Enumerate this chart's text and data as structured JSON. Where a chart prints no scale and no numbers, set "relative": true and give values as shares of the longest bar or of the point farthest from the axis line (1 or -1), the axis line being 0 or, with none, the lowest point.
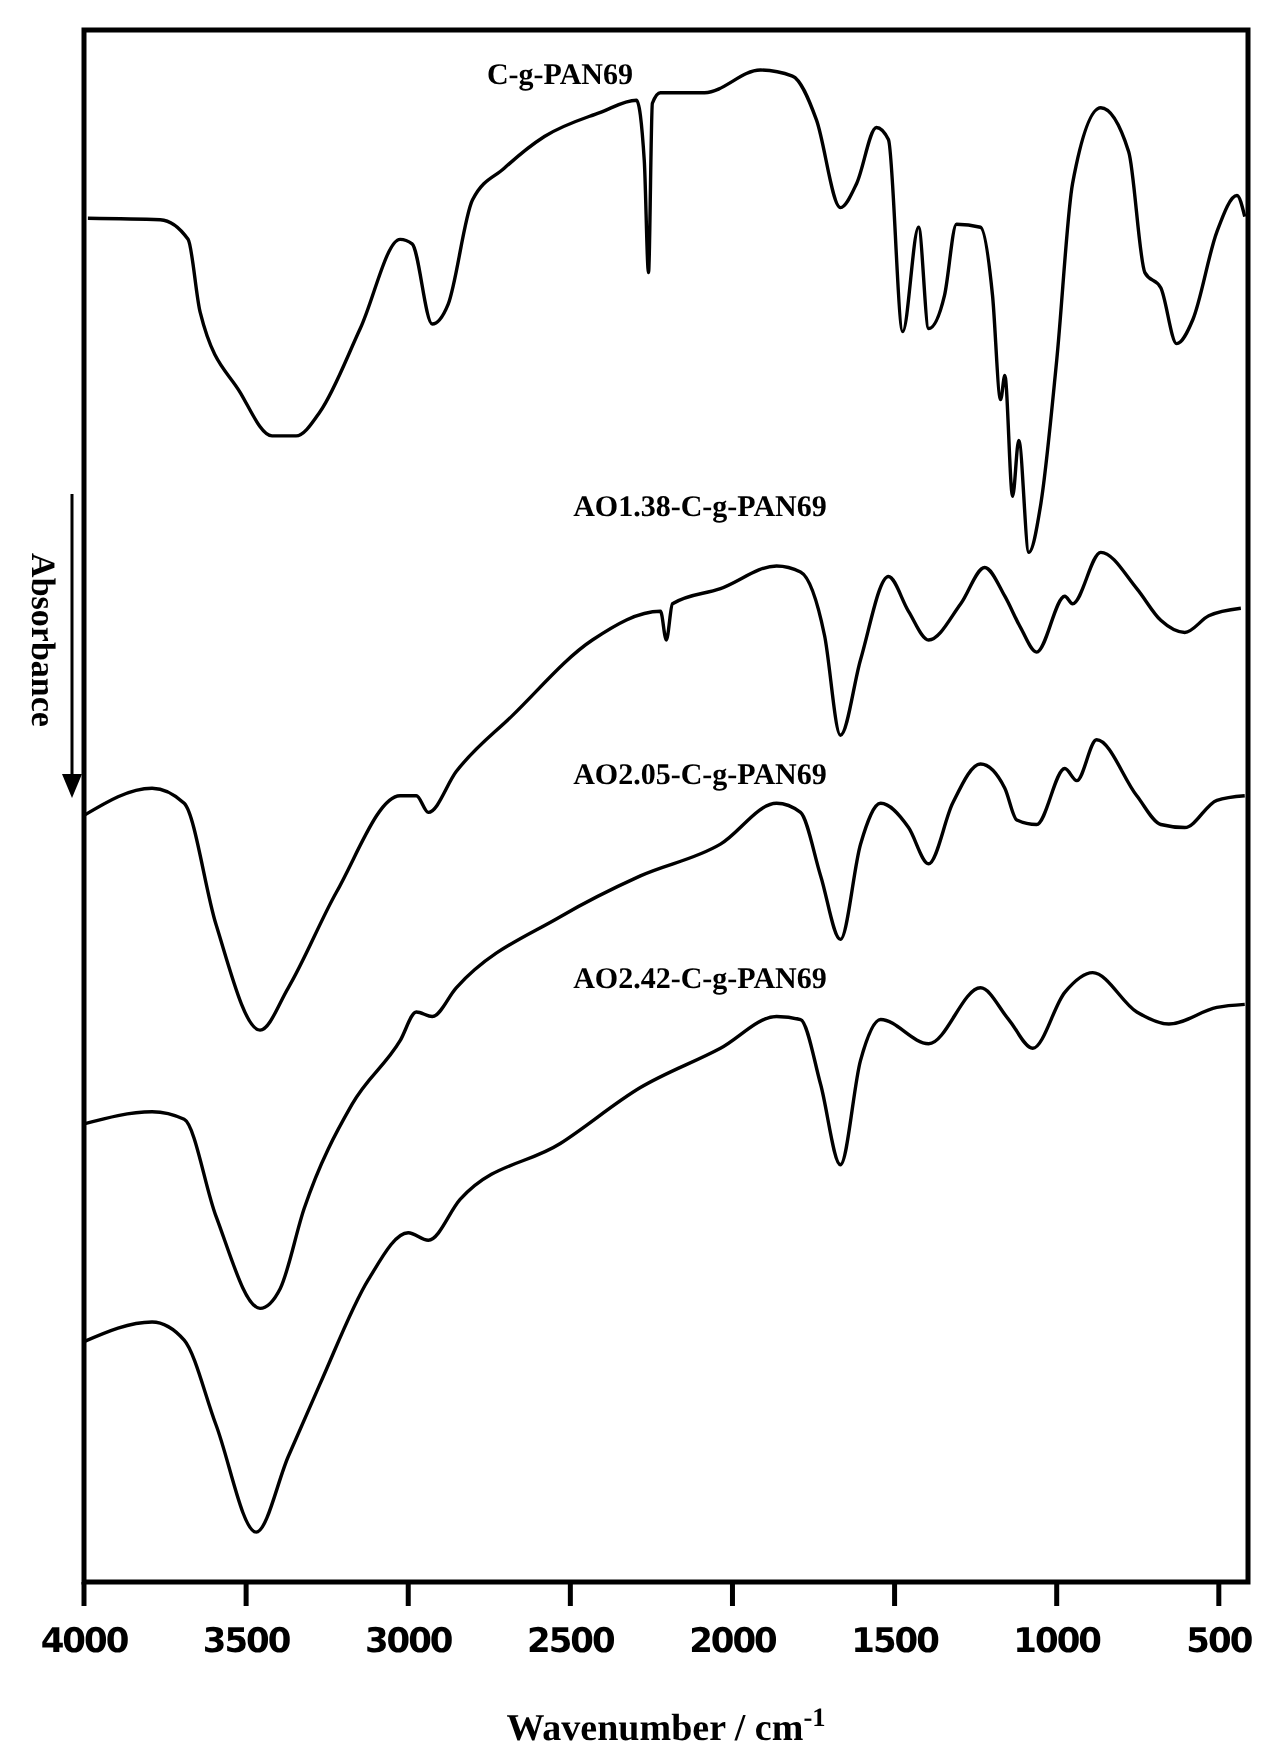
{
  "chart_data": {
    "type": "line",
    "relative": true,
    "xlabel": "Wavenumber / cm$^{-1}$",
    "ylabel": "Absorbance",
    "xlim": [
      4000,
      410
    ],
    "xticks": [
      4000,
      3500,
      3000,
      2500,
      2000,
      1500,
      1000,
      500
    ],
    "grid": false,
    "legend": false,
    "marker": "none",
    "line_style": "solid",
    "tick_labels": "x",
    "series": [
      {
        "name": "C-g-PAN69",
        "color": "#000000",
        "x": [
          3988,
          3765,
          3679,
          3642,
          3519,
          3420,
          3346,
          3272,
          3148,
          3025,
          2988,
          2926,
          2877,
          2802,
          2704,
          2580,
          2407,
          2296,
          2272,
          2259,
          2247,
          2222,
          2086,
          1914,
          1815,
          1741,
          1667,
          1617,
          1556,
          1519,
          1475,
          1426,
          1395,
          1346,
          1309,
          1235,
          1198,
          1173,
          1160,
          1136,
          1117,
          1086,
          1049,
          1000,
          951,
          864,
          778,
          728,
          679,
          630,
          580,
          506,
          444,
          420
        ],
        "values": [
          0.902,
          0.901,
          0.888,
          0.84,
          0.787,
          0.758,
          0.758,
          0.774,
          0.829,
          0.888,
          0.885,
          0.832,
          0.845,
          0.914,
          0.935,
          0.956,
          0.972,
          0.98,
          0.94,
          0.866,
          0.978,
          0.985,
          0.985,
          1.0,
          0.996,
          0.967,
          0.909,
          0.925,
          0.962,
          0.954,
          0.827,
          0.896,
          0.829,
          0.851,
          0.898,
          0.896,
          0.851,
          0.782,
          0.798,
          0.718,
          0.755,
          0.681,
          0.713,
          0.808,
          0.925,
          0.975,
          0.946,
          0.866,
          0.856,
          0.819,
          0.835,
          0.893,
          0.917,
          0.903
        ]
      },
      {
        "name": "AO1.38-C-g-PAN69",
        "color": "#000000",
        "x": [
          4000,
          3790,
          3691,
          3593,
          3457,
          3370,
          3222,
          3025,
          2975,
          2938,
          2852,
          2679,
          2432,
          2222,
          2204,
          2185,
          2037,
          1864,
          1790,
          1716,
          1667,
          1605,
          1519,
          1457,
          1395,
          1296,
          1222,
          1160,
          1111,
          1062,
          975,
          951,
          864,
          753,
          679,
          605,
          531,
          432
        ],
        "values": [
          0.507,
          0.525,
          0.515,
          0.435,
          0.365,
          0.393,
          0.456,
          0.52,
          0.52,
          0.509,
          0.536,
          0.573,
          0.623,
          0.642,
          0.623,
          0.647,
          0.657,
          0.672,
          0.668,
          0.626,
          0.56,
          0.61,
          0.665,
          0.642,
          0.623,
          0.647,
          0.671,
          0.652,
          0.631,
          0.615,
          0.652,
          0.647,
          0.681,
          0.657,
          0.636,
          0.628,
          0.639,
          0.644
        ]
      },
      {
        "name": "AO2.05-C-g-PAN69",
        "color": "#000000",
        "x": [
          4000,
          3790,
          3691,
          3593,
          3457,
          3395,
          3321,
          3173,
          3025,
          2975,
          2926,
          2852,
          2531,
          2284,
          2037,
          1864,
          1790,
          1728,
          1667,
          1605,
          1543,
          1457,
          1395,
          1321,
          1235,
          1160,
          1123,
          1062,
          975,
          938,
          877,
          753,
          679,
          605,
          506,
          420
        ],
        "values": [
          0.303,
          0.311,
          0.306,
          0.242,
          0.181,
          0.194,
          0.247,
          0.316,
          0.358,
          0.377,
          0.374,
          0.393,
          0.44,
          0.467,
          0.488,
          0.515,
          0.509,
          0.467,
          0.425,
          0.488,
          0.515,
          0.499,
          0.475,
          0.515,
          0.541,
          0.525,
          0.504,
          0.501,
          0.538,
          0.53,
          0.557,
          0.52,
          0.501,
          0.499,
          0.517,
          0.52
        ]
      },
      {
        "name": "AO2.42-C-g-PAN69",
        "color": "#000000",
        "x": [
          4000,
          3790,
          3691,
          3593,
          3469,
          3370,
          3272,
          3123,
          3000,
          2938,
          2840,
          2531,
          2284,
          2037,
          1864,
          1790,
          1728,
          1667,
          1605,
          1543,
          1395,
          1235,
          1148,
          1074,
          975,
          889,
          753,
          654,
          506,
          420
        ],
        "values": [
          0.159,
          0.172,
          0.16,
          0.104,
          0.033,
          0.083,
          0.131,
          0.2,
          0.231,
          0.226,
          0.253,
          0.29,
          0.327,
          0.353,
          0.374,
          0.372,
          0.329,
          0.276,
          0.345,
          0.372,
          0.356,
          0.393,
          0.372,
          0.353,
          0.39,
          0.403,
          0.377,
          0.369,
          0.38,
          0.382
        ]
      }
    ]
  }
}
